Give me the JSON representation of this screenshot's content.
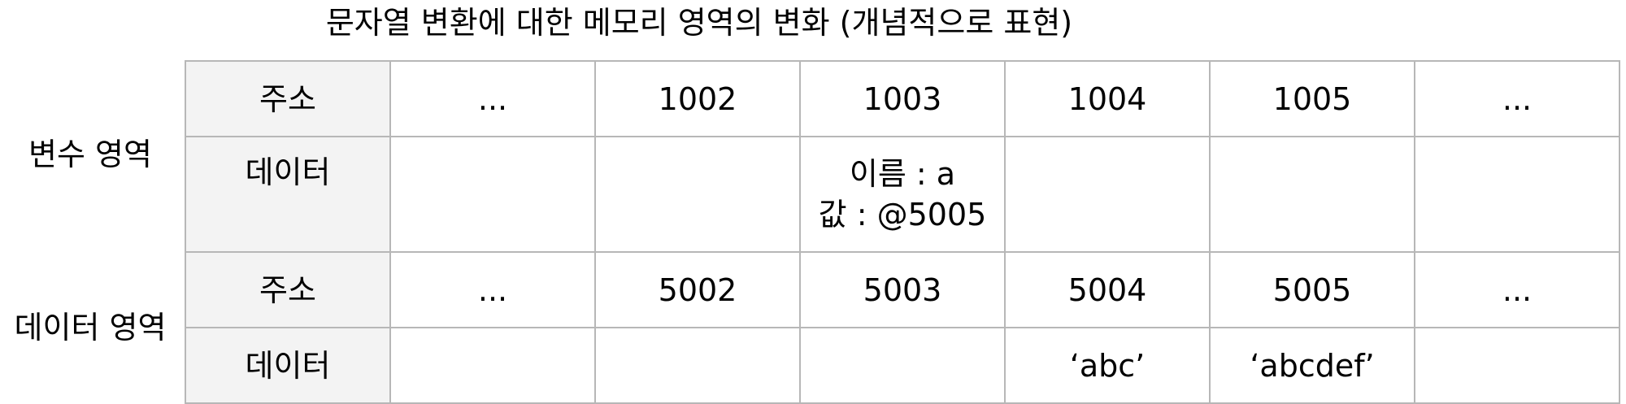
{
  "title": "문자열 변환에 대한 메모리 영역의 변화 (개념적으로 표현)",
  "row_groups": {
    "variable_area": "변수 영역",
    "data_area": "데이터 영역"
  },
  "variable_area": {
    "address_header": "주소",
    "data_header": "데이터",
    "addresses": [
      "...",
      "1002",
      "1003",
      "1004",
      "1005",
      "..."
    ],
    "data": [
      "",
      "",
      "이름 : a\n값 : @5005",
      "",
      "",
      ""
    ],
    "cell_1003": {
      "line1": "이름 : a",
      "line2": "값 : @5005"
    }
  },
  "data_area": {
    "address_header": "주소",
    "data_header": "데이터",
    "addresses": [
      "...",
      "5002",
      "5003",
      "5004",
      "5005",
      "..."
    ],
    "data": [
      "",
      "",
      "",
      "‘abc’",
      "‘abcdef’",
      ""
    ]
  },
  "colors": {
    "border": "#b7b7b7",
    "header_bg": "#f3f3f3",
    "text": "#000000"
  }
}
